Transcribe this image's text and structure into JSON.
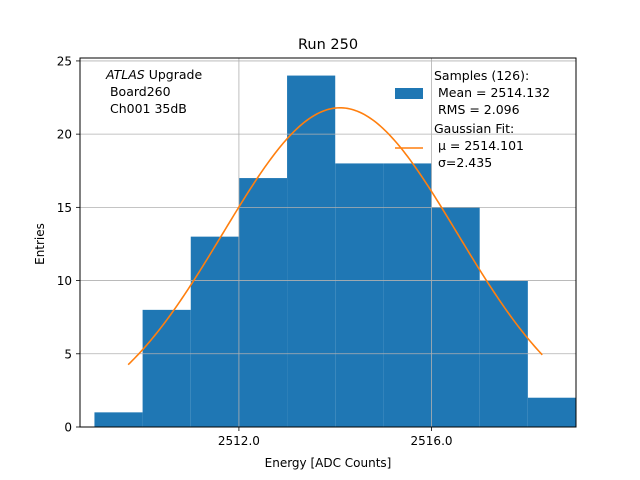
{
  "chart_data": {
    "type": "bar",
    "title": "Run 250",
    "xlabel": "Energy [ADC Counts]",
    "ylabel": "Entries",
    "xlim": [
      2508.7,
      2519.0
    ],
    "ylim": [
      0,
      25.2
    ],
    "xticks": [
      2512.0,
      2516.0
    ],
    "xtick_labels": [
      "2512.0",
      "2516.0"
    ],
    "yticks": [
      0,
      5,
      10,
      15,
      20,
      25
    ],
    "grid": true,
    "legend_position": "top-right",
    "annotation": {
      "lines": [
        {
          "italic": "ATLAS",
          "rest": " Upgrade"
        },
        {
          "italic": "",
          "rest": " Board260"
        },
        {
          "italic": "",
          "rest": " Ch001 35dB"
        }
      ]
    },
    "histogram": {
      "name": "Samples (126):",
      "color": "#1f77b4",
      "bin_edges": [
        2509,
        2510,
        2511,
        2512,
        2513,
        2514,
        2515,
        2516,
        2517,
        2518,
        2519
      ],
      "counts": [
        1,
        8,
        13,
        17,
        24,
        18,
        18,
        15,
        10,
        2
      ]
    },
    "fit": {
      "name": "Gaussian Fit:",
      "color": "#ff7f0e",
      "mu": 2514.101,
      "sigma": 2.435,
      "amplitude": 21.8,
      "x_range": [
        2509.7,
        2518.3
      ]
    },
    "legend": {
      "entries": [
        {
          "kind": "patch",
          "lines": [
            "Samples (126):",
            " Mean = 2514.132",
            " RMS = 2.096"
          ]
        },
        {
          "kind": "line",
          "lines": [
            "Gaussian Fit:",
            " μ = 2514.101",
            " σ=2.435"
          ]
        }
      ]
    }
  }
}
